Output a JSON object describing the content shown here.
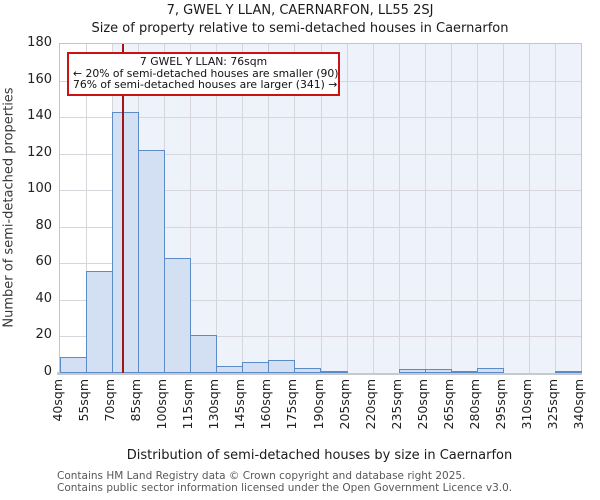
{
  "page": {
    "title": "7, GWEL Y LLAN, CAERNARFON, LL55 2SJ",
    "subtitle": "Size of property relative to semi-detached houses in Caernarfon"
  },
  "annotation": {
    "title": "7 GWEL Y LLAN: 76sqm",
    "smaller": "← 20% of semi-detached houses are smaller (90)",
    "larger": "76% of semi-detached houses are larger (341) →"
  },
  "chart_data": {
    "type": "bar",
    "title": "Size of property relative to semi-detached houses in Caernarfon",
    "xlabel": "Distribution of semi-detached houses by size in Caernarfon",
    "ylabel": "Number of semi-detached properties",
    "x_unit": "sqm",
    "bins_start": 40,
    "bin_width": 15,
    "categories": [
      "40sqm",
      "55sqm",
      "70sqm",
      "85sqm",
      "100sqm",
      "115sqm",
      "130sqm",
      "145sqm",
      "160sqm",
      "175sqm",
      "190sqm",
      "205sqm",
      "220sqm",
      "235sqm",
      "250sqm",
      "265sqm",
      "280sqm",
      "295sqm",
      "310sqm",
      "325sqm",
      "340sqm"
    ],
    "values": [
      9,
      56,
      143,
      122,
      63,
      21,
      4,
      6,
      7,
      3,
      1,
      0,
      0,
      2,
      2,
      1,
      3,
      0,
      0,
      1
    ],
    "ylim": [
      0,
      180
    ],
    "ytick_step": 20,
    "grid": true,
    "legend": "none",
    "marker": {
      "value": 76,
      "label": "7 GWEL Y LLAN: 76sqm",
      "color": "#a61418"
    },
    "shade_from": 70,
    "colors": {
      "bar_fill": "#d3dff2",
      "bar_edge": "#5b8cc8",
      "shade": "#eef2fb",
      "grid": "#d6d6dc",
      "annotation_border": "#cc1111",
      "marker": "#a61418"
    }
  },
  "footer": {
    "line1": "Contains HM Land Registry data © Crown copyright and database right 2025.",
    "line2": "Contains public sector information licensed under the Open Government Licence v3.0."
  }
}
